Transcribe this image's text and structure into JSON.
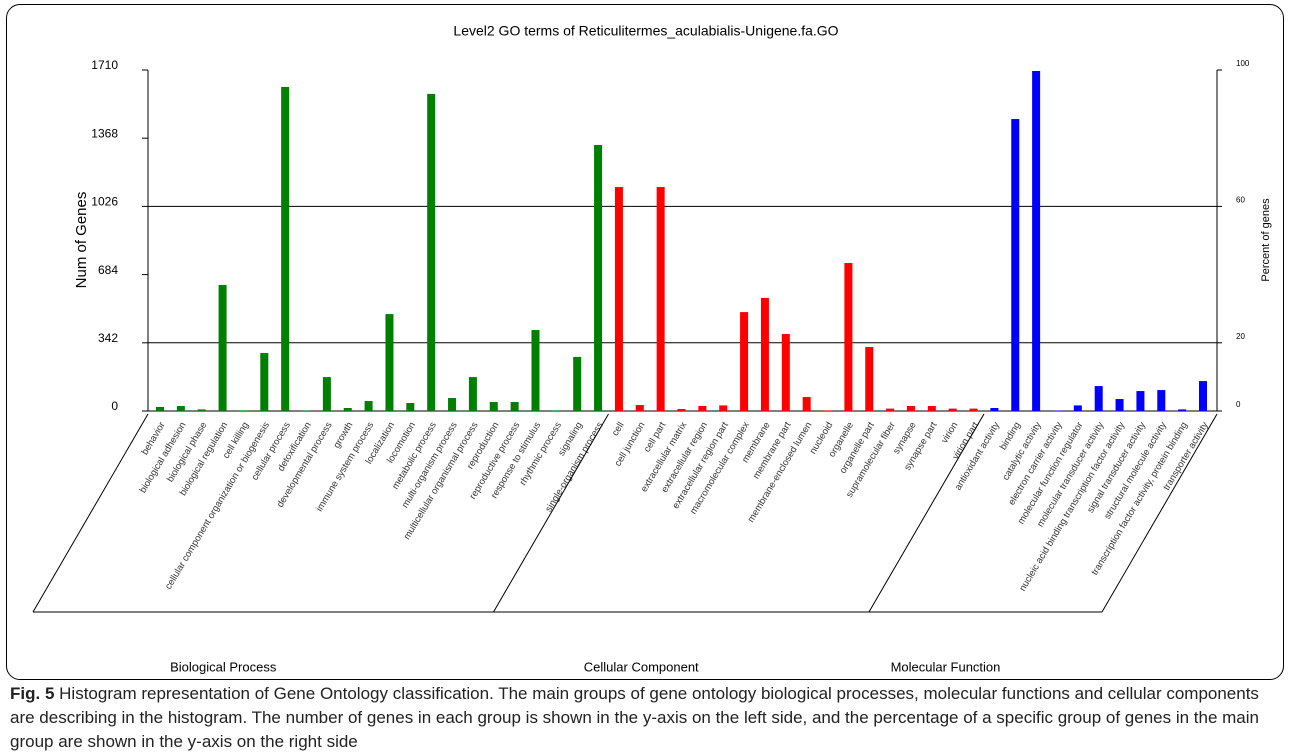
{
  "chart_data": {
    "type": "bar",
    "title": "Level2 GO terms of Reticulitermes_aculabialis-Unigene.fa.GO",
    "ylabel": "Num of Genes",
    "y2label": "Percent of genes",
    "ylim": [
      0,
      1710
    ],
    "yticks": [
      0,
      342,
      684,
      1026,
      1368,
      1710
    ],
    "y2lim": [
      0,
      100
    ],
    "y2ticks": [
      0,
      20,
      60,
      100
    ],
    "grid": true,
    "series": [
      {
        "name": "Biological Process",
        "color": "#008000",
        "categories": [
          "behavior",
          "biological adhesion",
          "biological phase",
          "biological regulation",
          "cell killing",
          "cellular component organization or biogenesis",
          "cellular process",
          "detoxification",
          "developmental process",
          "growth",
          "immune system process",
          "localization",
          "locomotion",
          "metabolic process",
          "multi-organism process",
          "multicellular organismal process",
          "reproduction",
          "reproductive process",
          "response to stimulus",
          "rhythmic process",
          "signaling",
          "single-organism process"
        ],
        "values": [
          20,
          25,
          8,
          632,
          3,
          291,
          1625,
          3,
          170,
          15,
          50,
          486,
          40,
          1590,
          65,
          170,
          45,
          45,
          406,
          3,
          271,
          1334
        ]
      },
      {
        "name": "Cellular Component",
        "color": "#ff0000",
        "categories": [
          "cell",
          "cell junction",
          "cell part",
          "extracellular matrix",
          "extracellular region",
          "extracellular region part",
          "macromolecular complex",
          "membrane",
          "membrane part",
          "membrane-enclosed lumen",
          "nucleoid",
          "organelle",
          "organelle part",
          "supramolecular fiber",
          "synapse",
          "synapse part",
          "virion",
          "virion part"
        ],
        "values": [
          1123,
          30,
          1123,
          10,
          25,
          28,
          496,
          567,
          386,
          70,
          3,
          742,
          321,
          12,
          25,
          25,
          12,
          12
        ]
      },
      {
        "name": "Molecular Function",
        "color": "#0000ff",
        "categories": [
          "antioxidant activity",
          "binding",
          "catalytic activity",
          "electron carrier activity",
          "molecular function regulator",
          "molecular transducer activity",
          "nucleic acid binding transcription factor activity",
          "signal transducer activity",
          "structural molecule activity",
          "transcription factor activity, protein binding",
          "transporter activity"
        ],
        "values": [
          15,
          1464,
          1705,
          2,
          28,
          125,
          60,
          100,
          105,
          8,
          150
        ]
      }
    ]
  },
  "caption": {
    "label": "Fig. 5",
    "text": "Histogram representation of Gene Ontology classification. The main groups of gene ontology biological processes, molecular functions and cellular components are describing in the histogram. The number of genes in each group is shown in the y-axis on the left side, and the percentage of a specific group of genes in the main group are shown in the y-axis on the right side"
  }
}
